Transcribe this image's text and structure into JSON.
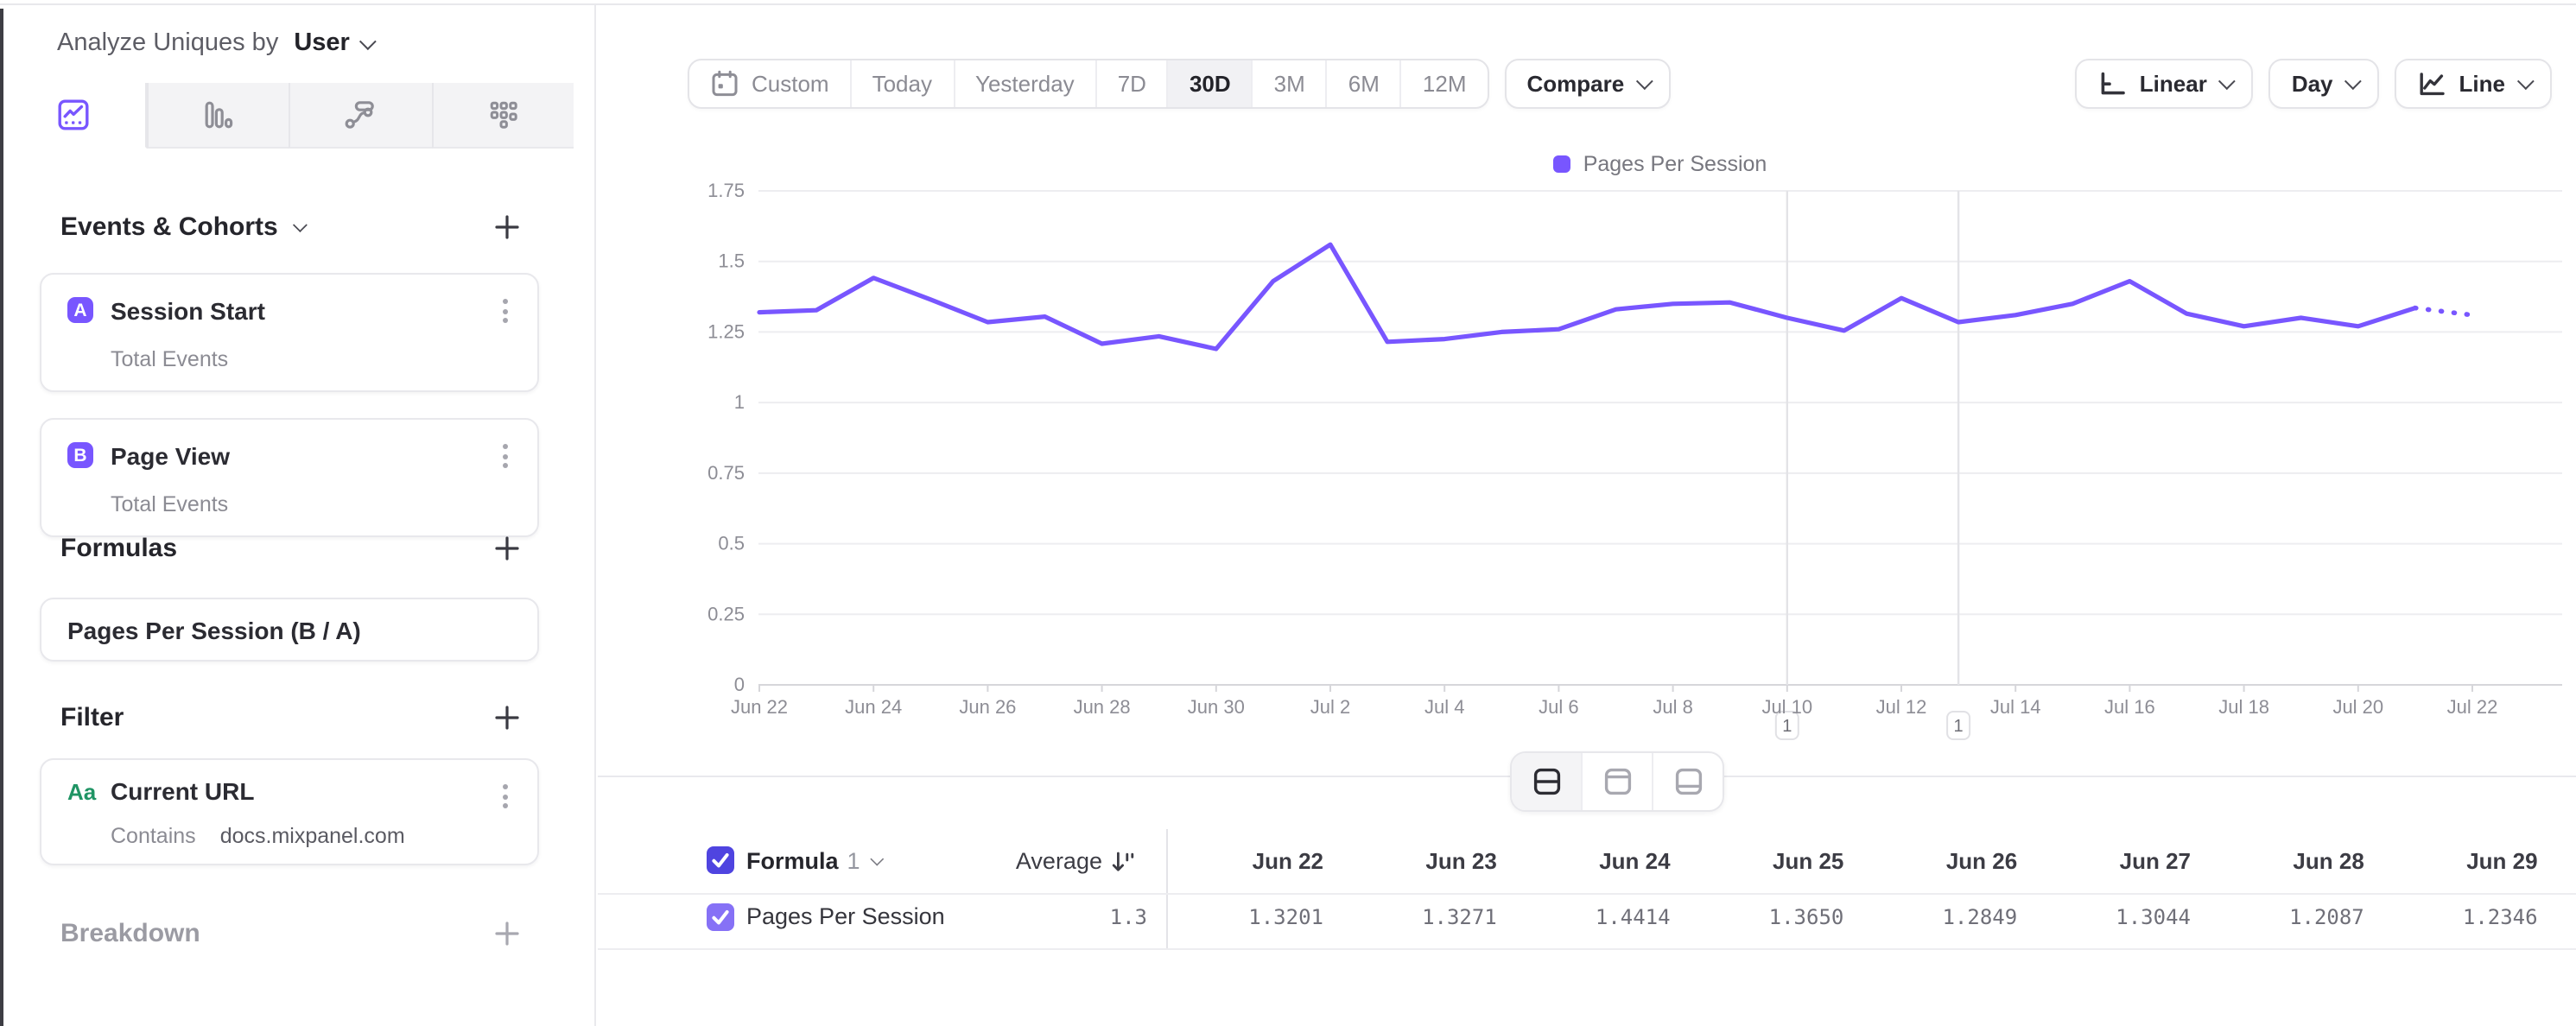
{
  "app": {
    "accent_color": "#7856FF",
    "grid_color": "#ededf0",
    "axis_label_color": "#8d8d95"
  },
  "sidebar": {
    "analyze_label": "Analyze Uniques by",
    "analyze_value": "User",
    "tabs": [
      {
        "icon": "insights-chart-icon",
        "selected": true
      },
      {
        "icon": "bar-chart-icon",
        "selected": false
      },
      {
        "icon": "flows-icon",
        "selected": false
      },
      {
        "icon": "retention-grid-icon",
        "selected": false
      }
    ],
    "events": {
      "title": "Events & Cohorts",
      "items": [
        {
          "badge": "A",
          "title": "Session Start",
          "subtitle": "Total Events"
        },
        {
          "badge": "B",
          "title": "Page View",
          "subtitle": "Total Events"
        }
      ]
    },
    "formulas": {
      "title": "Formulas",
      "items": [
        {
          "title": "Pages Per Session (B / A)"
        }
      ]
    },
    "filter": {
      "title": "Filter",
      "items": [
        {
          "type_badge": "Aa",
          "title": "Current URL",
          "operator": "Contains",
          "value": "docs.mixpanel.com"
        }
      ]
    },
    "breakdown": {
      "title": "Breakdown"
    }
  },
  "toolbar": {
    "date_ranges": [
      "Custom",
      "Today",
      "Yesterday",
      "7D",
      "30D",
      "3M",
      "6M",
      "12M"
    ],
    "selected_range": "30D",
    "compare_label": "Compare",
    "scale_label": "Linear",
    "granularity_label": "Day",
    "chart_type_label": "Line"
  },
  "view_toggle": {
    "options": [
      "split-view",
      "chart-only-view",
      "table-only-view"
    ],
    "selected": "split-view"
  },
  "chart_data": {
    "type": "line",
    "legend": [
      "Pages Per Session"
    ],
    "x": [
      "Jun 22",
      "Jun 23",
      "Jun 24",
      "Jun 25",
      "Jun 26",
      "Jun 27",
      "Jun 28",
      "Jun 29",
      "Jun 30",
      "Jul 1",
      "Jul 2",
      "Jul 3",
      "Jul 4",
      "Jul 5",
      "Jul 6",
      "Jul 7",
      "Jul 8",
      "Jul 9",
      "Jul 10",
      "Jul 11",
      "Jul 12",
      "Jul 13",
      "Jul 14",
      "Jul 15",
      "Jul 16",
      "Jul 17",
      "Jul 18",
      "Jul 19",
      "Jul 20",
      "Jul 21",
      "Jul 22"
    ],
    "series": [
      {
        "name": "Pages Per Session",
        "values": [
          1.3201,
          1.3271,
          1.4414,
          1.365,
          1.2849,
          1.3044,
          1.2087,
          1.2346,
          1.19,
          1.43,
          1.56,
          1.215,
          1.225,
          1.25,
          1.26,
          1.33,
          1.35,
          1.355,
          1.3,
          1.255,
          1.37,
          1.285,
          1.31,
          1.35,
          1.43,
          1.315,
          1.27,
          1.3,
          1.27,
          1.335,
          1.31
        ]
      }
    ],
    "ylim": [
      0,
      1.75
    ],
    "yticks": [
      0,
      0.25,
      0.5,
      0.75,
      1,
      1.25,
      1.5,
      1.75
    ],
    "x_tick_every": 2,
    "incomplete_tail_from_index": 29,
    "annotations": [
      {
        "x": "Jul 10",
        "label": "1"
      },
      {
        "x": "Jul 13",
        "label": "1"
      }
    ],
    "line_color": "#7856FF",
    "grid": true,
    "legend_position": "top-center",
    "xlabel": "",
    "ylabel": ""
  },
  "table": {
    "header_checked": true,
    "formula_label": "Formula",
    "formula_number": "1",
    "average_label": "Average",
    "columns": [
      "Jun 22",
      "Jun 23",
      "Jun 24",
      "Jun 25",
      "Jun 26",
      "Jun 27",
      "Jun 28",
      "Jun 29"
    ],
    "rows": [
      {
        "checked": true,
        "name": "Pages Per Session",
        "average": "1.3",
        "values": [
          "1.3201",
          "1.3271",
          "1.4414",
          "1.3650",
          "1.2849",
          "1.3044",
          "1.2087",
          "1.2346"
        ]
      }
    ]
  }
}
